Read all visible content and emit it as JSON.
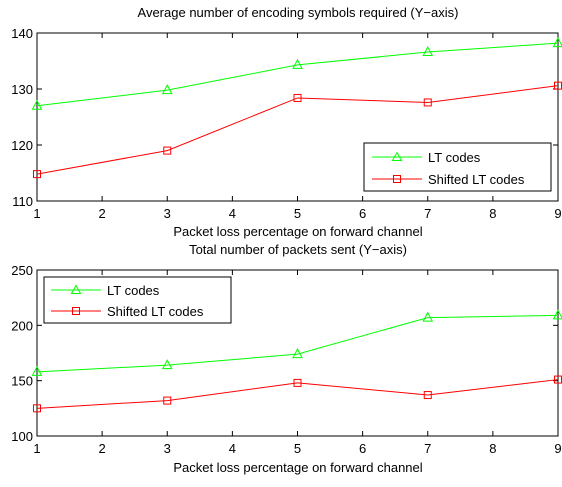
{
  "chart_data": [
    {
      "type": "line",
      "title": "Average number of encoding symbols required (Y−axis)",
      "xlabel": "Packet loss percentage on forward channel",
      "ylabel": "",
      "xlim": [
        1,
        9
      ],
      "ylim": [
        110,
        140
      ],
      "x_ticks": [
        "1",
        "2",
        "3",
        "4",
        "5",
        "6",
        "7",
        "8",
        "9"
      ],
      "y_ticks": [
        "110",
        "120",
        "130",
        "140"
      ],
      "x": [
        1,
        3,
        5,
        7,
        9
      ],
      "series": [
        {
          "name": "LT codes",
          "marker": "triangle",
          "color": "#00ff00",
          "values": [
            127.0,
            129.8,
            134.3,
            136.6,
            138.2
          ]
        },
        {
          "name": "Shifted LT codes",
          "marker": "square",
          "color": "#ff0000",
          "values": [
            114.8,
            119.0,
            128.4,
            127.6,
            130.6
          ]
        }
      ],
      "legend": "bottom-right",
      "grid": false
    },
    {
      "type": "line",
      "title": "Total number of packets sent (Y−axis)",
      "xlabel": "Packet loss percentage on forward channel",
      "ylabel": "",
      "xlim": [
        1,
        9
      ],
      "ylim": [
        100,
        250
      ],
      "x_ticks": [
        "1",
        "2",
        "3",
        "4",
        "5",
        "6",
        "7",
        "8",
        "9"
      ],
      "y_ticks": [
        "100",
        "150",
        "200",
        "250"
      ],
      "x": [
        1,
        3,
        5,
        7,
        9
      ],
      "series": [
        {
          "name": "LT codes",
          "marker": "triangle",
          "color": "#00ff00",
          "values": [
            158,
            164,
            174,
            207,
            209
          ]
        },
        {
          "name": "Shifted LT codes",
          "marker": "square",
          "color": "#ff0000",
          "values": [
            125,
            132,
            148,
            137,
            151
          ]
        }
      ],
      "legend": "top-left",
      "grid": false
    }
  ]
}
